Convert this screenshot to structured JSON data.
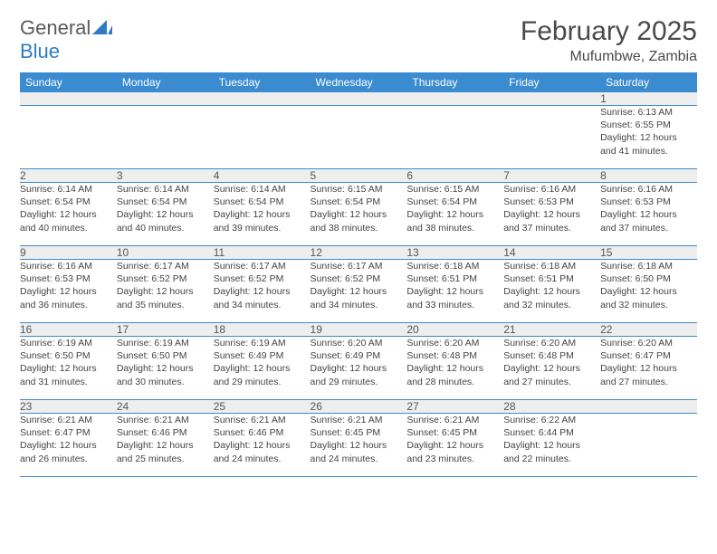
{
  "logo": {
    "text1": "General",
    "text2": "Blue"
  },
  "header": {
    "title": "February 2025",
    "location": "Mufumbwe, Zambia"
  },
  "colors": {
    "header_bg": "#3b8bd0",
    "header_text": "#ffffff",
    "daynum_bg": "#eeeeee",
    "rule": "#3b8bd0",
    "logo_blue": "#2f7cc4",
    "body_text": "#444444"
  },
  "columns": [
    "Sunday",
    "Monday",
    "Tuesday",
    "Wednesday",
    "Thursday",
    "Friday",
    "Saturday"
  ],
  "weeks": [
    [
      null,
      null,
      null,
      null,
      null,
      null,
      {
        "d": "1",
        "sr": "Sunrise: 6:13 AM",
        "ss": "Sunset: 6:55 PM",
        "dl1": "Daylight: 12 hours",
        "dl2": "and 41 minutes."
      }
    ],
    [
      {
        "d": "2",
        "sr": "Sunrise: 6:14 AM",
        "ss": "Sunset: 6:54 PM",
        "dl1": "Daylight: 12 hours",
        "dl2": "and 40 minutes."
      },
      {
        "d": "3",
        "sr": "Sunrise: 6:14 AM",
        "ss": "Sunset: 6:54 PM",
        "dl1": "Daylight: 12 hours",
        "dl2": "and 40 minutes."
      },
      {
        "d": "4",
        "sr": "Sunrise: 6:14 AM",
        "ss": "Sunset: 6:54 PM",
        "dl1": "Daylight: 12 hours",
        "dl2": "and 39 minutes."
      },
      {
        "d": "5",
        "sr": "Sunrise: 6:15 AM",
        "ss": "Sunset: 6:54 PM",
        "dl1": "Daylight: 12 hours",
        "dl2": "and 38 minutes."
      },
      {
        "d": "6",
        "sr": "Sunrise: 6:15 AM",
        "ss": "Sunset: 6:54 PM",
        "dl1": "Daylight: 12 hours",
        "dl2": "and 38 minutes."
      },
      {
        "d": "7",
        "sr": "Sunrise: 6:16 AM",
        "ss": "Sunset: 6:53 PM",
        "dl1": "Daylight: 12 hours",
        "dl2": "and 37 minutes."
      },
      {
        "d": "8",
        "sr": "Sunrise: 6:16 AM",
        "ss": "Sunset: 6:53 PM",
        "dl1": "Daylight: 12 hours",
        "dl2": "and 37 minutes."
      }
    ],
    [
      {
        "d": "9",
        "sr": "Sunrise: 6:16 AM",
        "ss": "Sunset: 6:53 PM",
        "dl1": "Daylight: 12 hours",
        "dl2": "and 36 minutes."
      },
      {
        "d": "10",
        "sr": "Sunrise: 6:17 AM",
        "ss": "Sunset: 6:52 PM",
        "dl1": "Daylight: 12 hours",
        "dl2": "and 35 minutes."
      },
      {
        "d": "11",
        "sr": "Sunrise: 6:17 AM",
        "ss": "Sunset: 6:52 PM",
        "dl1": "Daylight: 12 hours",
        "dl2": "and 34 minutes."
      },
      {
        "d": "12",
        "sr": "Sunrise: 6:17 AM",
        "ss": "Sunset: 6:52 PM",
        "dl1": "Daylight: 12 hours",
        "dl2": "and 34 minutes."
      },
      {
        "d": "13",
        "sr": "Sunrise: 6:18 AM",
        "ss": "Sunset: 6:51 PM",
        "dl1": "Daylight: 12 hours",
        "dl2": "and 33 minutes."
      },
      {
        "d": "14",
        "sr": "Sunrise: 6:18 AM",
        "ss": "Sunset: 6:51 PM",
        "dl1": "Daylight: 12 hours",
        "dl2": "and 32 minutes."
      },
      {
        "d": "15",
        "sr": "Sunrise: 6:18 AM",
        "ss": "Sunset: 6:50 PM",
        "dl1": "Daylight: 12 hours",
        "dl2": "and 32 minutes."
      }
    ],
    [
      {
        "d": "16",
        "sr": "Sunrise: 6:19 AM",
        "ss": "Sunset: 6:50 PM",
        "dl1": "Daylight: 12 hours",
        "dl2": "and 31 minutes."
      },
      {
        "d": "17",
        "sr": "Sunrise: 6:19 AM",
        "ss": "Sunset: 6:50 PM",
        "dl1": "Daylight: 12 hours",
        "dl2": "and 30 minutes."
      },
      {
        "d": "18",
        "sr": "Sunrise: 6:19 AM",
        "ss": "Sunset: 6:49 PM",
        "dl1": "Daylight: 12 hours",
        "dl2": "and 29 minutes."
      },
      {
        "d": "19",
        "sr": "Sunrise: 6:20 AM",
        "ss": "Sunset: 6:49 PM",
        "dl1": "Daylight: 12 hours",
        "dl2": "and 29 minutes."
      },
      {
        "d": "20",
        "sr": "Sunrise: 6:20 AM",
        "ss": "Sunset: 6:48 PM",
        "dl1": "Daylight: 12 hours",
        "dl2": "and 28 minutes."
      },
      {
        "d": "21",
        "sr": "Sunrise: 6:20 AM",
        "ss": "Sunset: 6:48 PM",
        "dl1": "Daylight: 12 hours",
        "dl2": "and 27 minutes."
      },
      {
        "d": "22",
        "sr": "Sunrise: 6:20 AM",
        "ss": "Sunset: 6:47 PM",
        "dl1": "Daylight: 12 hours",
        "dl2": "and 27 minutes."
      }
    ],
    [
      {
        "d": "23",
        "sr": "Sunrise: 6:21 AM",
        "ss": "Sunset: 6:47 PM",
        "dl1": "Daylight: 12 hours",
        "dl2": "and 26 minutes."
      },
      {
        "d": "24",
        "sr": "Sunrise: 6:21 AM",
        "ss": "Sunset: 6:46 PM",
        "dl1": "Daylight: 12 hours",
        "dl2": "and 25 minutes."
      },
      {
        "d": "25",
        "sr": "Sunrise: 6:21 AM",
        "ss": "Sunset: 6:46 PM",
        "dl1": "Daylight: 12 hours",
        "dl2": "and 24 minutes."
      },
      {
        "d": "26",
        "sr": "Sunrise: 6:21 AM",
        "ss": "Sunset: 6:45 PM",
        "dl1": "Daylight: 12 hours",
        "dl2": "and 24 minutes."
      },
      {
        "d": "27",
        "sr": "Sunrise: 6:21 AM",
        "ss": "Sunset: 6:45 PM",
        "dl1": "Daylight: 12 hours",
        "dl2": "and 23 minutes."
      },
      {
        "d": "28",
        "sr": "Sunrise: 6:22 AM",
        "ss": "Sunset: 6:44 PM",
        "dl1": "Daylight: 12 hours",
        "dl2": "and 22 minutes."
      },
      null
    ]
  ]
}
